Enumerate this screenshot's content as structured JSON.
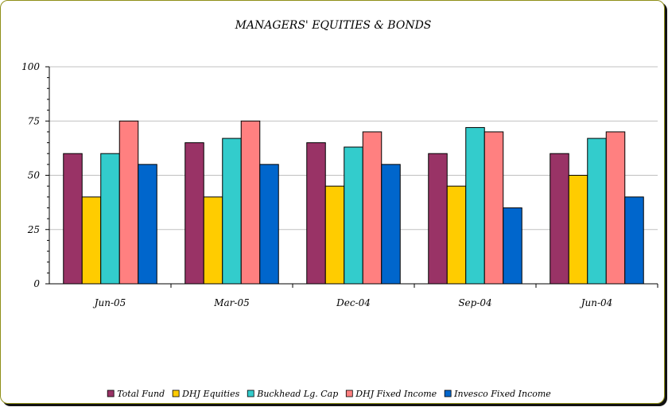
{
  "chart_data": {
    "type": "bar",
    "title": "MANAGERS' EQUITIES & BONDS",
    "xlabel": "",
    "ylabel": "",
    "ylim": [
      0,
      100
    ],
    "yticks": [
      "0",
      "25",
      "50",
      "75",
      "100"
    ],
    "grid": true,
    "legend_position": "bottom",
    "categories": [
      "Jun-05",
      "Mar-05",
      "Dec-04",
      "Sep-04",
      "Jun-04"
    ],
    "series": [
      {
        "name": "Total Fund",
        "color": "#993366",
        "values": [
          60,
          65,
          65,
          60,
          60
        ]
      },
      {
        "name": "DHJ Equities",
        "color": "#ffcc00",
        "values": [
          40,
          40,
          45,
          45,
          50
        ]
      },
      {
        "name": "Buckhead Lg. Cap",
        "color": "#33cccc",
        "values": [
          60,
          67,
          63,
          72,
          67
        ]
      },
      {
        "name": "DHJ Fixed Income",
        "color": "#ff8080",
        "values": [
          75,
          75,
          70,
          70,
          70
        ]
      },
      {
        "name": "Invesco Fixed Income",
        "color": "#0066cc",
        "values": [
          55,
          55,
          55,
          35,
          40
        ]
      }
    ]
  }
}
